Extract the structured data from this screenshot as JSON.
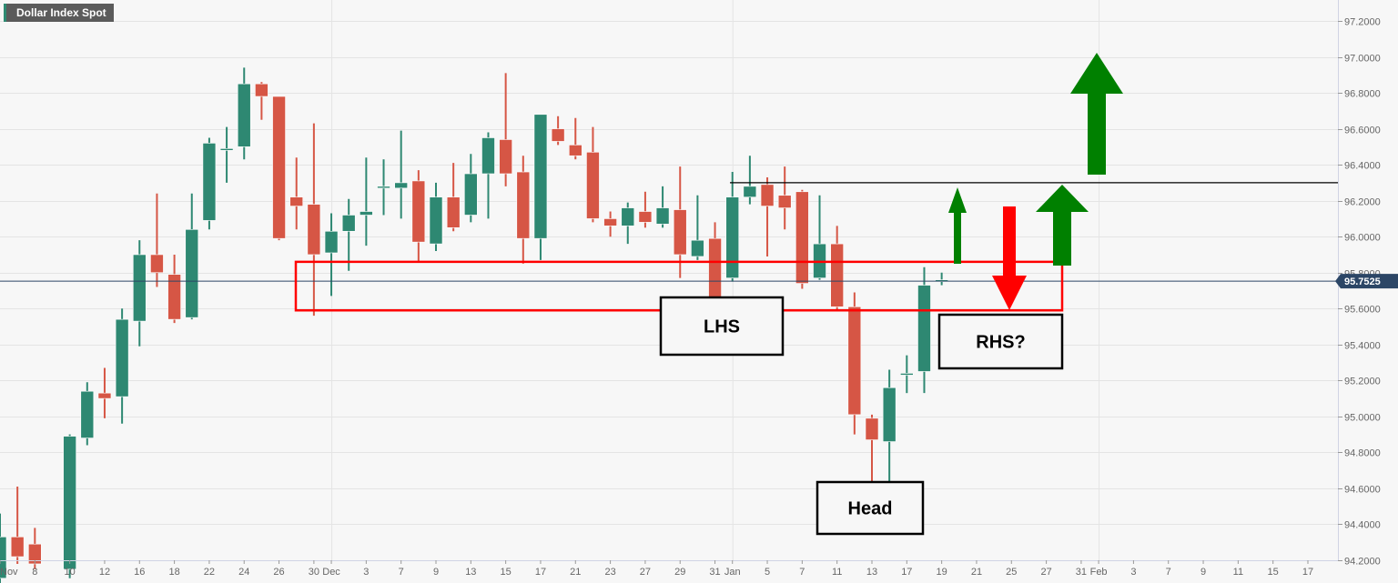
{
  "header": {
    "instrument": "Dollar Index Spot"
  },
  "colors": {
    "up": "#2e8872",
    "down": "#d65645",
    "price_line": "#2c4666",
    "zone": "#ff0000",
    "arrow_up": "#008000",
    "arrow_down": "#ff0000"
  },
  "chart_data": {
    "type": "candlestick",
    "title": "Dollar Index Spot",
    "ylim": [
      94.2,
      97.2
    ],
    "y_ticks": [
      "94.2000",
      "94.4000",
      "94.6000",
      "94.8000",
      "95.0000",
      "95.2000",
      "95.4000",
      "95.6000",
      "95.8000",
      "96.0000",
      "96.2000",
      "96.4000",
      "96.6000",
      "96.8000",
      "97.0000",
      "97.2000"
    ],
    "current_price": "95.7525",
    "x_ticks": [
      {
        "label": "Nov",
        "slot": 0
      },
      {
        "label": "8",
        "slot": 2
      },
      {
        "label": "10",
        "slot": 4
      },
      {
        "label": "12",
        "slot": 6
      },
      {
        "label": "16",
        "slot": 8
      },
      {
        "label": "18",
        "slot": 10
      },
      {
        "label": "22",
        "slot": 12
      },
      {
        "label": "24",
        "slot": 14
      },
      {
        "label": "26",
        "slot": 16
      },
      {
        "label": "30",
        "slot": 18
      },
      {
        "label": "Dec",
        "slot": 19
      },
      {
        "label": "3",
        "slot": 21
      },
      {
        "label": "7",
        "slot": 23
      },
      {
        "label": "9",
        "slot": 25
      },
      {
        "label": "13",
        "slot": 27
      },
      {
        "label": "15",
        "slot": 29
      },
      {
        "label": "17",
        "slot": 31
      },
      {
        "label": "21",
        "slot": 33
      },
      {
        "label": "23",
        "slot": 35
      },
      {
        "label": "27",
        "slot": 37
      },
      {
        "label": "29",
        "slot": 39
      },
      {
        "label": "31",
        "slot": 41
      },
      {
        "label": "Jan",
        "slot": 42
      },
      {
        "label": "5",
        "slot": 44
      },
      {
        "label": "7",
        "slot": 46
      },
      {
        "label": "11",
        "slot": 48
      },
      {
        "label": "13",
        "slot": 50
      },
      {
        "label": "17",
        "slot": 52
      },
      {
        "label": "19",
        "slot": 54
      },
      {
        "label": "21",
        "slot": 56
      },
      {
        "label": "25",
        "slot": 58
      },
      {
        "label": "27",
        "slot": 60
      },
      {
        "label": "31",
        "slot": 62
      },
      {
        "label": "Feb",
        "slot": 63
      },
      {
        "label": "3",
        "slot": 65
      },
      {
        "label": "7",
        "slot": 67
      },
      {
        "label": "9",
        "slot": 69
      },
      {
        "label": "11",
        "slot": 71
      },
      {
        "label": "15",
        "slot": 73
      },
      {
        "label": "17",
        "slot": 75
      }
    ],
    "month_lines": [
      19,
      42,
      63
    ],
    "candles_ohlc": [
      [
        94.1,
        94.46,
        94.05,
        94.33
      ],
      [
        94.33,
        94.61,
        94.18,
        94.22
      ],
      [
        94.29,
        94.38,
        94.15,
        94.18
      ],
      null,
      [
        94.15,
        94.9,
        94.1,
        94.89
      ],
      [
        94.88,
        95.19,
        94.84,
        95.14
      ],
      [
        95.13,
        95.27,
        94.99,
        95.1
      ],
      [
        95.11,
        95.6,
        94.96,
        95.54
      ],
      [
        95.53,
        95.98,
        95.39,
        95.9
      ],
      [
        95.9,
        96.24,
        95.72,
        95.8
      ],
      [
        95.79,
        95.9,
        95.52,
        95.54
      ],
      [
        95.55,
        96.24,
        95.54,
        96.04
      ],
      [
        96.09,
        96.55,
        96.04,
        96.52
      ],
      [
        96.49,
        96.61,
        96.3,
        96.49
      ],
      [
        96.5,
        96.94,
        96.43,
        96.85
      ],
      [
        96.85,
        96.86,
        96.65,
        96.78
      ],
      [
        96.78,
        96.78,
        95.98,
        95.99
      ],
      [
        96.22,
        96.44,
        96.04,
        96.17
      ],
      [
        96.18,
        96.63,
        95.56,
        95.9
      ],
      [
        95.91,
        96.13,
        95.67,
        96.03
      ],
      [
        96.03,
        96.21,
        95.81,
        96.12
      ],
      [
        96.12,
        96.44,
        95.95,
        96.14
      ],
      [
        96.28,
        96.43,
        96.12,
        96.28
      ],
      [
        96.27,
        96.59,
        96.1,
        96.3
      ],
      [
        96.31,
        96.37,
        95.86,
        95.97
      ],
      [
        95.96,
        96.3,
        95.92,
        96.22
      ],
      [
        96.22,
        96.41,
        96.03,
        96.05
      ],
      [
        96.12,
        96.46,
        96.08,
        96.35
      ],
      [
        96.35,
        96.58,
        96.1,
        96.55
      ],
      [
        96.54,
        96.91,
        96.28,
        96.35
      ],
      [
        96.36,
        96.45,
        95.85,
        95.99
      ],
      [
        95.99,
        96.68,
        95.87,
        96.68
      ],
      [
        96.6,
        96.67,
        96.51,
        96.53
      ],
      [
        96.51,
        96.66,
        96.43,
        96.45
      ],
      [
        96.47,
        96.61,
        96.08,
        96.1
      ],
      [
        96.1,
        96.14,
        96.0,
        96.06
      ],
      [
        96.06,
        96.19,
        95.96,
        96.16
      ],
      [
        96.14,
        96.25,
        96.05,
        96.08
      ],
      [
        96.07,
        96.28,
        96.05,
        96.16
      ],
      [
        96.15,
        96.39,
        95.77,
        95.9
      ],
      [
        95.89,
        96.23,
        95.87,
        95.98
      ],
      [
        95.99,
        96.08,
        95.57,
        95.6
      ],
      [
        95.77,
        96.36,
        95.75,
        96.22
      ],
      [
        96.22,
        96.45,
        96.18,
        96.28
      ],
      [
        96.29,
        96.33,
        95.89,
        96.17
      ],
      [
        96.23,
        96.39,
        96.04,
        96.16
      ],
      [
        96.25,
        96.26,
        95.71,
        95.74
      ],
      [
        95.77,
        96.23,
        95.76,
        95.96
      ],
      [
        95.96,
        96.06,
        95.59,
        95.61
      ],
      [
        95.61,
        95.69,
        94.9,
        95.01
      ],
      [
        94.99,
        95.01,
        94.64,
        94.87
      ],
      [
        94.86,
        95.26,
        94.64,
        95.16
      ],
      [
        95.23,
        95.34,
        95.13,
        95.24
      ],
      [
        95.25,
        95.83,
        95.13,
        95.73
      ],
      [
        95.76,
        95.8,
        95.73,
        95.76
      ]
    ],
    "annotations": {
      "resistance_level": 96.3,
      "neckline_zone": [
        95.59,
        95.86
      ],
      "labels": {
        "lhs": "LHS",
        "head": "Head",
        "rhs": "RHS?"
      }
    }
  }
}
